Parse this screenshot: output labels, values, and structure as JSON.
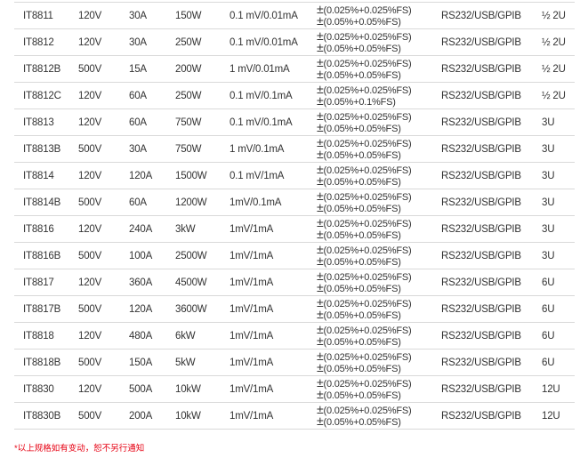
{
  "rows": [
    {
      "model": "IT8811",
      "voltage": "120V",
      "current": "30A",
      "power": "150W",
      "resolution": "0.1 mV/0.01mA",
      "accuracy_v": "(0.025%+0.025%FS)",
      "accuracy_i": "(0.05%+0.05%FS)",
      "interface": "RS232/USB/GPIB",
      "size": "½ 2U"
    },
    {
      "model": "IT8812",
      "voltage": "120V",
      "current": "30A",
      "power": "250W",
      "resolution": "0.1 mV/0.01mA",
      "accuracy_v": "(0.025%+0.025%FS)",
      "accuracy_i": "(0.05%+0.05%FS)",
      "interface": "RS232/USB/GPIB",
      "size": "½ 2U"
    },
    {
      "model": "IT8812B",
      "voltage": "500V",
      "current": "15A",
      "power": "200W",
      "resolution": "1 mV/0.01mA",
      "accuracy_v": "(0.025%+0.025%FS)",
      "accuracy_i": "(0.05%+0.05%FS)",
      "interface": "RS232/USB/GPIB",
      "size": "½ 2U"
    },
    {
      "model": "IT8812C",
      "voltage": "120V",
      "current": "60A",
      "power": "250W",
      "resolution": "0.1 mV/0.1mA",
      "accuracy_v": "(0.025%+0.025%FS)",
      "accuracy_i": "(0.05%+0.1%FS)",
      "interface": "RS232/USB/GPIB",
      "size": "½ 2U"
    },
    {
      "model": "IT8813",
      "voltage": "120V",
      "current": "60A",
      "power": "750W",
      "resolution": "0.1 mV/0.1mA",
      "accuracy_v": "(0.025%+0.025%FS)",
      "accuracy_i": "(0.05%+0.05%FS)",
      "interface": "RS232/USB/GPIB",
      "size": "3U"
    },
    {
      "model": "IT8813B",
      "voltage": "500V",
      "current": "30A",
      "power": "750W",
      "resolution": "1 mV/0.1mA",
      "accuracy_v": "(0.025%+0.025%FS)",
      "accuracy_i": "(0.05%+0.05%FS)",
      "interface": "RS232/USB/GPIB",
      "size": "3U"
    },
    {
      "model": "IT8814",
      "voltage": "120V",
      "current": "120A",
      "power": "1500W",
      "resolution": "0.1 mV/1mA",
      "accuracy_v": "(0.025%+0.025%FS)",
      "accuracy_i": "(0.05%+0.05%FS)",
      "interface": "RS232/USB/GPIB",
      "size": "3U"
    },
    {
      "model": "IT8814B",
      "voltage": "500V",
      "current": "60A",
      "power": "1200W",
      "resolution": "1mV/0.1mA",
      "accuracy_v": "(0.025%+0.025%FS)",
      "accuracy_i": "(0.05%+0.05%FS)",
      "interface": "RS232/USB/GPIB",
      "size": "3U"
    },
    {
      "model": "IT8816",
      "voltage": "120V",
      "current": "240A",
      "power": "3kW",
      "resolution": "1mV/1mA",
      "accuracy_v": "(0.025%+0.025%FS)",
      "accuracy_i": "(0.05%+0.05%FS)",
      "interface": "RS232/USB/GPIB",
      "size": "3U"
    },
    {
      "model": "IT8816B",
      "voltage": "500V",
      "current": "100A",
      "power": "2500W",
      "resolution": "1mV/1mA",
      "accuracy_v": "(0.025%+0.025%FS)",
      "accuracy_i": "(0.05%+0.05%FS)",
      "interface": "RS232/USB/GPIB",
      "size": "3U"
    },
    {
      "model": "IT8817",
      "voltage": "120V",
      "current": "360A",
      "power": "4500W",
      "resolution": "1mV/1mA",
      "accuracy_v": "(0.025%+0.025%FS)",
      "accuracy_i": "(0.05%+0.05%FS)",
      "interface": "RS232/USB/GPIB",
      "size": "6U"
    },
    {
      "model": "IT8817B",
      "voltage": "500V",
      "current": "120A",
      "power": "3600W",
      "resolution": "1mV/1mA",
      "accuracy_v": "(0.025%+0.025%FS)",
      "accuracy_i": "(0.05%+0.05%FS)",
      "interface": "RS232/USB/GPIB",
      "size": "6U"
    },
    {
      "model": "IT8818",
      "voltage": "120V",
      "current": "480A",
      "power": "6kW",
      "resolution": "1mV/1mA",
      "accuracy_v": "(0.025%+0.025%FS)",
      "accuracy_i": "(0.05%+0.05%FS)",
      "interface": "RS232/USB/GPIB",
      "size": "6U"
    },
    {
      "model": "IT8818B",
      "voltage": "500V",
      "current": "150A",
      "power": "5kW",
      "resolution": "1mV/1mA",
      "accuracy_v": "(0.025%+0.025%FS)",
      "accuracy_i": "(0.05%+0.05%FS)",
      "interface": "RS232/USB/GPIB",
      "size": "6U"
    },
    {
      "model": "IT8830",
      "voltage": "120V",
      "current": "500A",
      "power": "10kW",
      "resolution": "1mV/1mA",
      "accuracy_v": "(0.025%+0.025%FS)",
      "accuracy_i": "(0.05%+0.05%FS)",
      "interface": "RS232/USB/GPIB",
      "size": "12U"
    },
    {
      "model": "IT8830B",
      "voltage": "500V",
      "current": "200A",
      "power": "10kW",
      "resolution": "1mV/1mA",
      "accuracy_v": "(0.025%+0.025%FS)",
      "accuracy_i": "(0.05%+0.05%FS)",
      "interface": "RS232/USB/GPIB",
      "size": "12U"
    }
  ],
  "plus_minus": "±",
  "footnote": "*以上规格如有变动，恕不另行通知",
  "colors": {
    "text": "#333333",
    "rule": "#d9d9d9",
    "footnote": "#e60012"
  }
}
